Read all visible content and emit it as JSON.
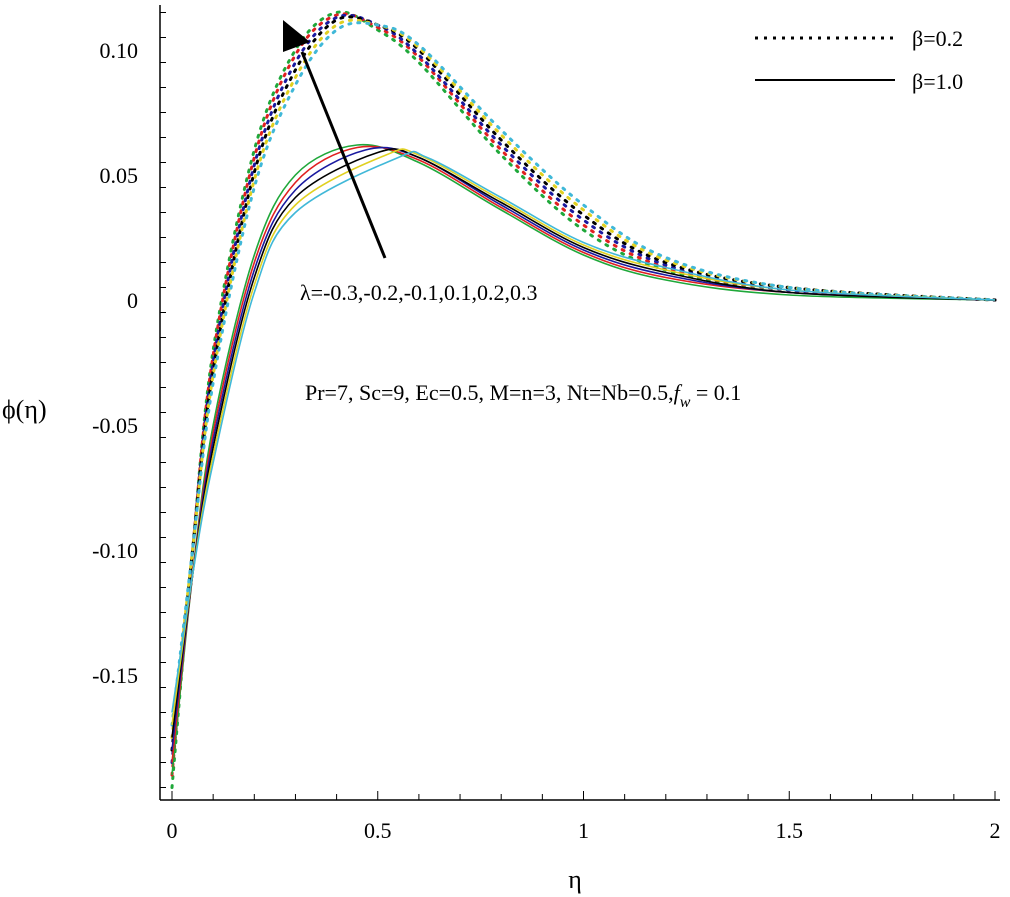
{
  "chart_data": {
    "type": "line",
    "title": "",
    "xlabel": "η",
    "ylabel": "ϕ(η)",
    "xlim": [
      0,
      2
    ],
    "ylim": [
      -0.2,
      0.118
    ],
    "x_ticks": [
      0,
      0.5,
      1,
      1.5,
      2
    ],
    "x_tick_labels": [
      "0",
      "0.5",
      "1",
      "1.5",
      "2"
    ],
    "y_ticks": [
      -0.15,
      -0.1,
      -0.05,
      0,
      0.05,
      0.1
    ],
    "y_tick_labels": [
      "-0.15",
      "-0.10",
      "-0.05",
      "0",
      "0.05",
      "0.10"
    ],
    "grid": false,
    "legend_position": "top-right",
    "legend": [
      {
        "label": "β=0.2",
        "style": "dotted"
      },
      {
        "label": "β=1.0",
        "style": "solid"
      }
    ],
    "annotations": {
      "arrow_label": "λ=-0.3,-0.2,-0.1,0.1,0.2,0.3",
      "params_text": "Pr=7, Sc=9, Ec=0.5, M=n=3, Nt=Nb=0.5,",
      "params_fw_symbol": "f",
      "params_fw_sub": "w",
      "params_fw_value": " = 0.1"
    },
    "series": [
      {
        "group": "β=0.2",
        "style": "dotted",
        "color": "#1fa83a",
        "x": [
          0,
          0.05,
          0.1,
          0.2,
          0.3,
          0.4,
          0.5,
          0.6,
          0.8,
          1.0,
          1.2,
          1.5,
          2.0
        ],
        "y": [
          -0.195,
          -0.1,
          -0.02,
          0.06,
          0.1,
          0.115,
          0.108,
          0.095,
          0.058,
          0.028,
          0.012,
          0.004,
          0
        ]
      },
      {
        "group": "β=0.2",
        "style": "dotted",
        "color": "#e02020",
        "x": [
          0,
          0.05,
          0.1,
          0.2,
          0.3,
          0.4,
          0.5,
          0.6,
          0.8,
          1.0,
          1.2,
          1.5,
          2.0
        ],
        "y": [
          -0.19,
          -0.1,
          -0.022,
          0.057,
          0.098,
          0.114,
          0.109,
          0.097,
          0.06,
          0.03,
          0.013,
          0.004,
          0
        ]
      },
      {
        "group": "β=0.2",
        "style": "dotted",
        "color": "#1a1aa0",
        "x": [
          0,
          0.05,
          0.1,
          0.2,
          0.3,
          0.4,
          0.5,
          0.6,
          0.8,
          1.0,
          1.2,
          1.5,
          2.0
        ],
        "y": [
          -0.185,
          -0.1,
          -0.025,
          0.054,
          0.095,
          0.113,
          0.11,
          0.098,
          0.062,
          0.032,
          0.014,
          0.004,
          0
        ]
      },
      {
        "group": "β=0.2",
        "style": "dotted",
        "color": "#000000",
        "x": [
          0,
          0.05,
          0.1,
          0.2,
          0.3,
          0.4,
          0.5,
          0.6,
          0.8,
          1.0,
          1.2,
          1.5,
          2.0
        ],
        "y": [
          -0.18,
          -0.1,
          -0.028,
          0.051,
          0.092,
          0.112,
          0.11,
          0.1,
          0.064,
          0.034,
          0.015,
          0.005,
          0
        ]
      },
      {
        "group": "β=0.2",
        "style": "dotted",
        "color": "#e0d020",
        "x": [
          0,
          0.05,
          0.1,
          0.2,
          0.3,
          0.4,
          0.5,
          0.6,
          0.8,
          1.0,
          1.2,
          1.5,
          2.0
        ],
        "y": [
          -0.175,
          -0.1,
          -0.03,
          0.048,
          0.089,
          0.11,
          0.11,
          0.101,
          0.066,
          0.036,
          0.016,
          0.005,
          0
        ]
      },
      {
        "group": "β=0.2",
        "style": "dotted",
        "color": "#40b8d8",
        "x": [
          0,
          0.05,
          0.1,
          0.2,
          0.3,
          0.4,
          0.5,
          0.6,
          0.8,
          1.0,
          1.2,
          1.5,
          2.0
        ],
        "y": [
          -0.17,
          -0.1,
          -0.033,
          0.045,
          0.086,
          0.108,
          0.11,
          0.102,
          0.068,
          0.038,
          0.017,
          0.005,
          0
        ]
      },
      {
        "group": "β=1.0",
        "style": "solid",
        "color": "#1fa83a",
        "x": [
          0,
          0.05,
          0.1,
          0.2,
          0.3,
          0.45,
          0.6,
          0.8,
          1.0,
          1.2,
          1.5,
          2.0
        ],
        "y": [
          -0.19,
          -0.11,
          -0.05,
          0.018,
          0.05,
          0.062,
          0.055,
          0.036,
          0.018,
          0.008,
          0.002,
          0
        ]
      },
      {
        "group": "β=1.0",
        "style": "solid",
        "color": "#e02020",
        "x": [
          0,
          0.05,
          0.1,
          0.2,
          0.3,
          0.45,
          0.6,
          0.8,
          1.0,
          1.2,
          1.5,
          2.0
        ],
        "y": [
          -0.185,
          -0.11,
          -0.053,
          0.015,
          0.047,
          0.061,
          0.056,
          0.037,
          0.019,
          0.009,
          0.003,
          0
        ]
      },
      {
        "group": "β=1.0",
        "style": "solid",
        "color": "#1a1aa0",
        "x": [
          0,
          0.05,
          0.1,
          0.2,
          0.3,
          0.47,
          0.6,
          0.8,
          1.0,
          1.2,
          1.5,
          2.0
        ],
        "y": [
          -0.18,
          -0.11,
          -0.056,
          0.012,
          0.044,
          0.06,
          0.057,
          0.038,
          0.02,
          0.01,
          0.003,
          0
        ]
      },
      {
        "group": "β=1.0",
        "style": "solid",
        "color": "#000000",
        "x": [
          0,
          0.05,
          0.1,
          0.2,
          0.3,
          0.5,
          0.6,
          0.8,
          1.0,
          1.2,
          1.5,
          2.0
        ],
        "y": [
          -0.175,
          -0.11,
          -0.059,
          0.009,
          0.041,
          0.059,
          0.057,
          0.039,
          0.021,
          0.011,
          0.003,
          0
        ]
      },
      {
        "group": "β=1.0",
        "style": "solid",
        "color": "#e0d020",
        "x": [
          0,
          0.05,
          0.1,
          0.2,
          0.3,
          0.52,
          0.6,
          0.8,
          1.0,
          1.2,
          1.5,
          2.0
        ],
        "y": [
          -0.17,
          -0.11,
          -0.062,
          0.006,
          0.038,
          0.058,
          0.058,
          0.04,
          0.022,
          0.012,
          0.004,
          0
        ]
      },
      {
        "group": "β=1.0",
        "style": "solid",
        "color": "#40b8d8",
        "x": [
          0,
          0.05,
          0.1,
          0.2,
          0.3,
          0.55,
          0.62,
          0.8,
          1.0,
          1.2,
          1.5,
          2.0
        ],
        "y": [
          -0.165,
          -0.11,
          -0.065,
          0.003,
          0.035,
          0.057,
          0.057,
          0.041,
          0.023,
          0.013,
          0.004,
          0
        ]
      }
    ]
  }
}
